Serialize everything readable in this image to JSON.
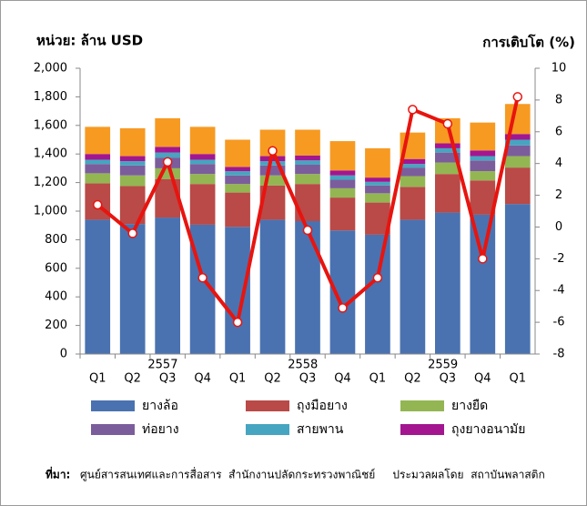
{
  "chart_data": {
    "type": "bar",
    "stacked": true,
    "y_axis_title": "หน่วย: ล้าน USD",
    "y2_axis_title": "การเติบโต (%)",
    "categories": [
      "Q1",
      "Q2",
      "Q3",
      "Q4",
      "Q1",
      "Q2",
      "Q3",
      "Q4",
      "Q1",
      "Q2",
      "Q3",
      "Q4",
      "Q1"
    ],
    "category_groups": [
      "2557",
      "2558",
      "2559"
    ],
    "ylim": [
      0,
      2000
    ],
    "yticks": [
      0,
      200,
      400,
      600,
      800,
      {
        "value": 1000,
        "label": "1,000"
      },
      {
        "value": 1200,
        "label": "1,200"
      },
      {
        "value": 1400,
        "label": "1,400"
      },
      {
        "value": 1600,
        "label": "1,600"
      },
      {
        "value": 1800,
        "label": "1,800"
      },
      {
        "value": 2000,
        "label": "2,000"
      }
    ],
    "y2lim": [
      -8,
      10
    ],
    "y2ticks": [
      -8,
      -6,
      -4,
      -2,
      0,
      2,
      4,
      6,
      8,
      10
    ],
    "series": [
      {
        "name": "ยางล้อ",
        "color": "#4a72b0",
        "values": [
          940,
          910,
          955,
          905,
          890,
          940,
          930,
          865,
          835,
          940,
          990,
          975,
          1050
        ]
      },
      {
        "name": "ถุงมือยาง",
        "color": "#b94a47",
        "values": [
          255,
          265,
          270,
          285,
          240,
          240,
          260,
          230,
          225,
          230,
          270,
          240,
          255
        ]
      },
      {
        "name": "ยางยืด",
        "color": "#93b653",
        "values": [
          70,
          75,
          75,
          70,
          60,
          70,
          70,
          65,
          65,
          75,
          80,
          65,
          80
        ]
      },
      {
        "name": "ท่อยาง",
        "color": "#7b5d9c",
        "values": [
          65,
          70,
          75,
          70,
          60,
          70,
          65,
          60,
          55,
          60,
          70,
          75,
          75
        ]
      },
      {
        "name": "สายพาน",
        "color": "#46a5c0",
        "values": [
          30,
          30,
          35,
          30,
          30,
          30,
          30,
          30,
          25,
          25,
          30,
          30,
          40
        ]
      },
      {
        "name": "ถุงยางอนามัย",
        "color": "#a3168f",
        "values": [
          40,
          35,
          40,
          40,
          30,
          35,
          35,
          35,
          30,
          35,
          35,
          40,
          40
        ]
      },
      {
        "name": null,
        "color": "#f79a22",
        "values": [
          190,
          195,
          200,
          190,
          190,
          185,
          180,
          205,
          205,
          185,
          175,
          195,
          210
        ]
      },
      {
        "name": null,
        "type": "line",
        "axis": "y2",
        "color": "#e8140f",
        "values": [
          1.4,
          -0.4,
          4.1,
          -3.2,
          -6.0,
          4.8,
          -0.2,
          -5.1,
          -3.2,
          7.4,
          6.5,
          -2.0,
          8.2
        ]
      }
    ]
  },
  "source_label": "ที่มา:",
  "source_text": "ศูนย์สารสนเทศและการสื่อสาร  สำนักงานปลัดกระทรวงพาณิชย์     ประมวลผลโดย  สถาบันพลาสติก"
}
